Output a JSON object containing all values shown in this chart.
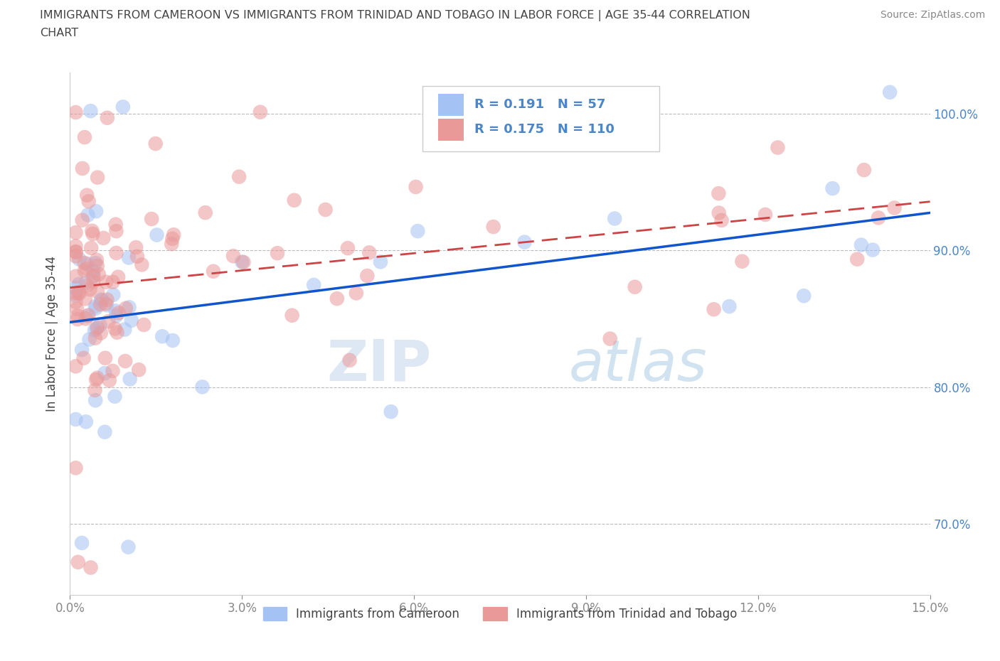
{
  "title_line1": "IMMIGRANTS FROM CAMEROON VS IMMIGRANTS FROM TRINIDAD AND TOBAGO IN LABOR FORCE | AGE 35-44 CORRELATION",
  "title_line2": "CHART",
  "source": "Source: ZipAtlas.com",
  "ylabel": "In Labor Force | Age 35-44",
  "xlim": [
    0.0,
    0.15
  ],
  "ylim": [
    0.648,
    1.03
  ],
  "xticks": [
    0.0,
    0.03,
    0.06,
    0.09,
    0.12,
    0.15
  ],
  "yticks": [
    0.7,
    0.8,
    0.9,
    1.0
  ],
  "xtick_labels": [
    "0.0%",
    "3.0%",
    "6.0%",
    "9.0%",
    "12.0%",
    "15.0%"
  ],
  "ytick_labels": [
    "70.0%",
    "80.0%",
    "90.0%",
    "100.0%"
  ],
  "legend_labels_bottom": [
    "Immigrants from Cameroon",
    "Immigrants from Trinidad and Tobago"
  ],
  "color_cameroon": "#a4c2f4",
  "color_tt": "#ea9999",
  "color_cameroon_line": "#1155cc",
  "color_tt_line": "#cc4444",
  "R_cameroon": 0.191,
  "N_cameroon": 57,
  "R_tt": 0.175,
  "N_tt": 110,
  "watermark_zip": "ZIP",
  "watermark_atlas": "atlas",
  "background_color": "#ffffff",
  "grid_color": "#bbbbbb",
  "text_color_blue": "#4a86c8",
  "title_color": "#444444",
  "source_color": "#888888",
  "legend_text_color": "#4a86c8"
}
